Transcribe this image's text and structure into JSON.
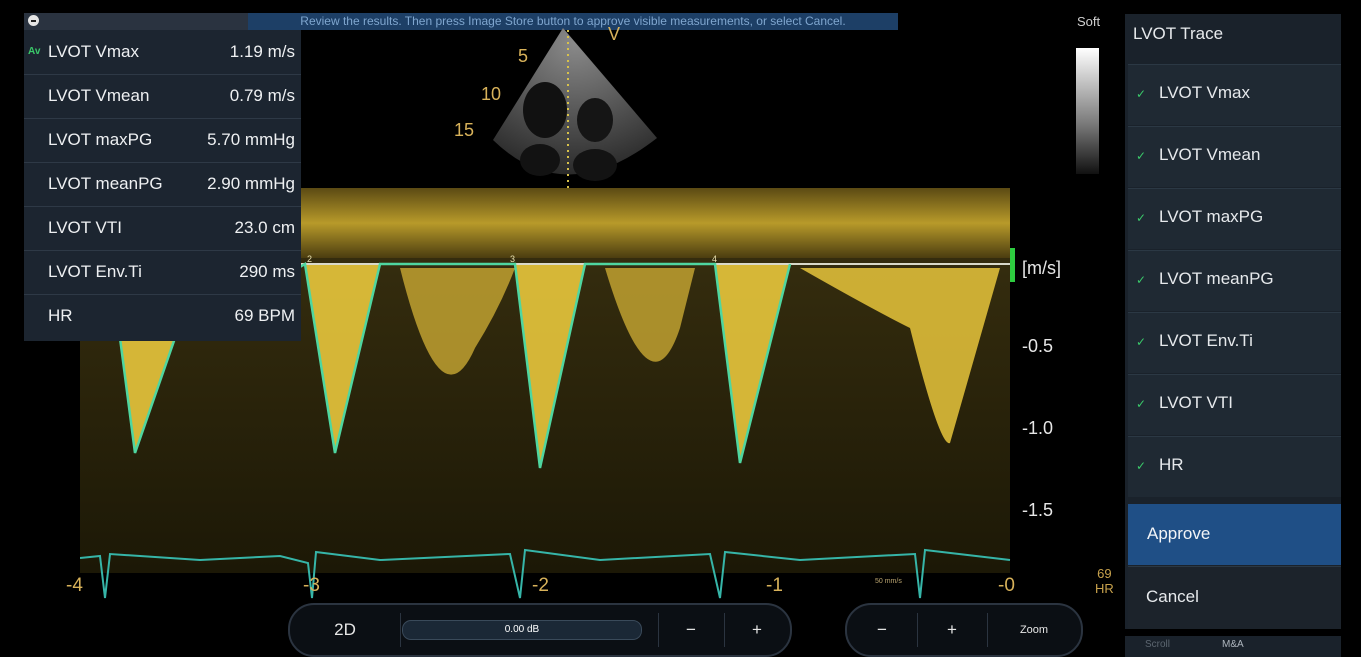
{
  "banner": {
    "message": "Review the results. Then press Image Store button to approve visible measurements, or select Cancel."
  },
  "measurements": {
    "badge": "Av",
    "rows": [
      {
        "label": "LVOT Vmax",
        "value": "1.19 m/s"
      },
      {
        "label": "LVOT Vmean",
        "value": "0.79 m/s"
      },
      {
        "label": "LVOT maxPG",
        "value": "5.70 mmHg"
      },
      {
        "label": "LVOT meanPG",
        "value": "2.90 mmHg"
      },
      {
        "label": "LVOT VTI",
        "value": "23.0 cm"
      },
      {
        "label": "LVOT Env.Ti",
        "value": "290 ms"
      },
      {
        "label": "HR",
        "value": "69 BPM"
      }
    ]
  },
  "sector": {
    "depth_labels": [
      "5",
      "10",
      "15"
    ],
    "marker": "V"
  },
  "doppler": {
    "unit_label": "[m/s]",
    "scale_labels": [
      "-0.5",
      "-1.0",
      "-1.5"
    ],
    "time_labels": [
      "-4",
      "-3",
      "-2",
      "-1",
      "-0"
    ],
    "cycle_labels": [
      "2",
      "3",
      "4"
    ],
    "sweep_label": "50 mm/s"
  },
  "grayscale": {
    "label": "Soft"
  },
  "side_hr": {
    "value": "69",
    "unit": "HR"
  },
  "panel": {
    "title": "LVOT Trace",
    "items": [
      "LVOT Vmax",
      "LVOT Vmean",
      "LVOT maxPG",
      "LVOT meanPG",
      "LVOT Env.Ti",
      "LVOT VTI",
      "HR"
    ],
    "check": "✓",
    "approve": "Approve",
    "cancel": "Cancel",
    "footer": {
      "scroll": "Scroll",
      "mga": "M&A"
    }
  },
  "controls": {
    "mode": "2D",
    "gain": "0.00 dB",
    "minus": "−",
    "plus": "+",
    "zoom": "Zoom"
  },
  "colors": {
    "doppler": "#e8c63c",
    "trace": "#4fd6a0",
    "accent": "#1f4f86",
    "check": "#3ac96a"
  }
}
